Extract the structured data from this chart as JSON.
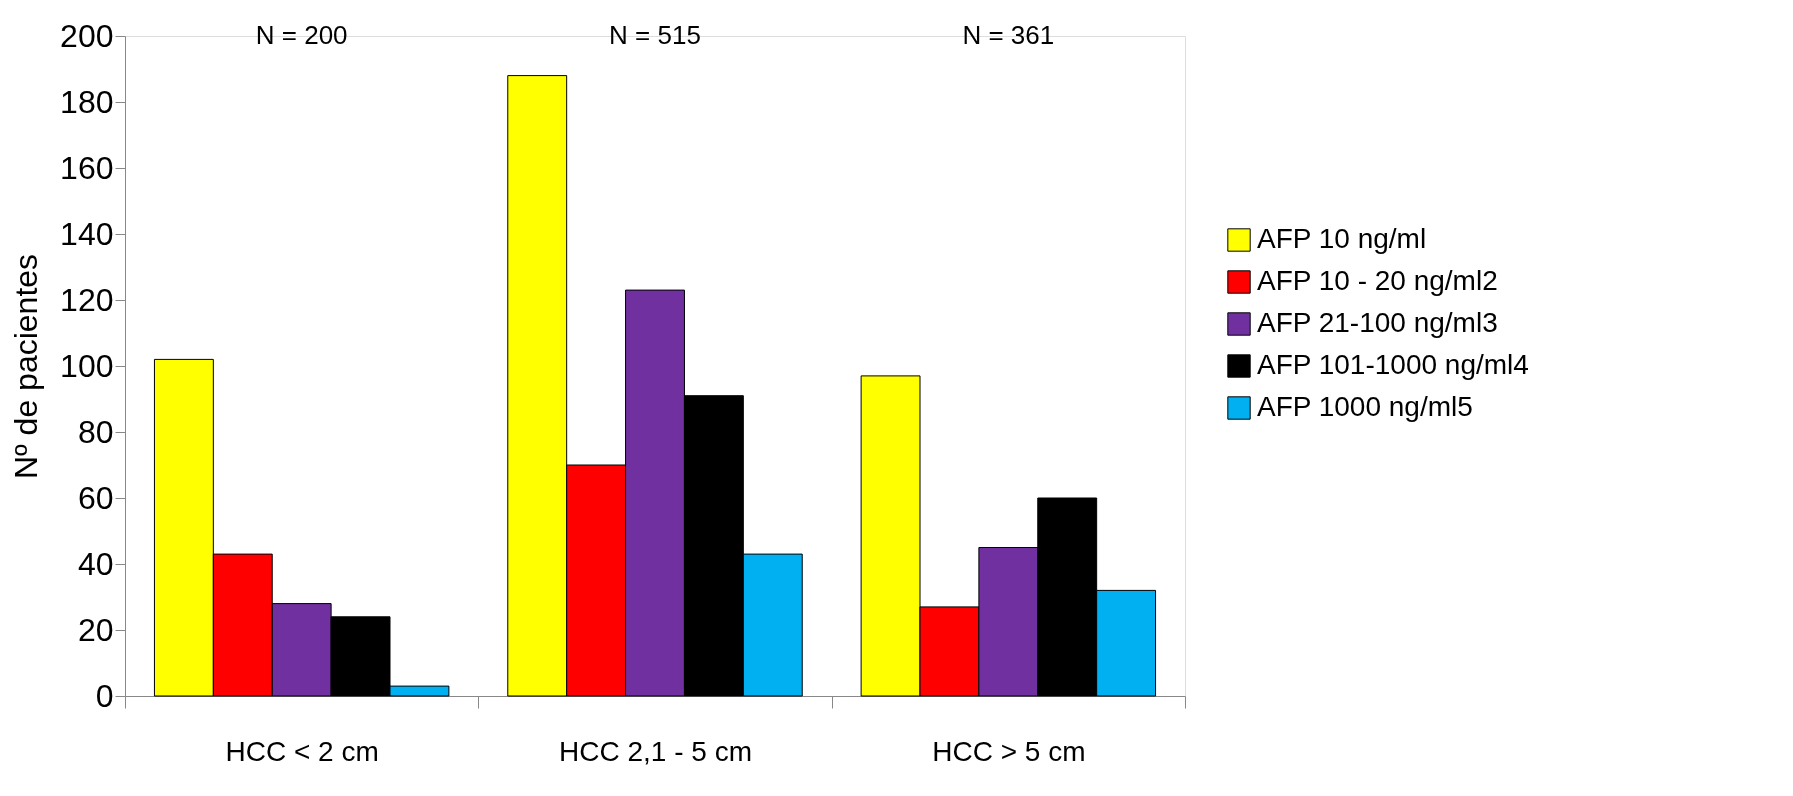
{
  "chart_data": {
    "type": "bar",
    "ylabel": "Nº de pacientes",
    "categories": [
      "HCC < 2 cm",
      "HCC 2,1 - 5 cm",
      "HCC > 5 cm"
    ],
    "series": [
      {
        "name": "AFP 10 ng/ml",
        "color": "#ffff00",
        "values": [
          102,
          188,
          97
        ]
      },
      {
        "name": "AFP 10 - 20 ng/ml2",
        "color": "#ff0000",
        "values": [
          43,
          70,
          27
        ]
      },
      {
        "name": "AFP 21-100 ng/ml3",
        "color": "#7030a0",
        "values": [
          28,
          123,
          45
        ]
      },
      {
        "name": "AFP 101-1000 ng/ml4",
        "color": "#000000",
        "values": [
          24,
          91,
          60
        ]
      },
      {
        "name": "AFP 1000 ng/ml5",
        "color": "#00b0f0",
        "values": [
          3,
          43,
          32
        ]
      }
    ],
    "ylim": [
      0,
      200
    ],
    "yticks": [
      0,
      20,
      40,
      60,
      80,
      100,
      120,
      140,
      160,
      180,
      200
    ],
    "grid": false,
    "legend": "right",
    "annotations": [
      "N  = 200",
      "N  = 515",
      "N  = 361"
    ]
  }
}
